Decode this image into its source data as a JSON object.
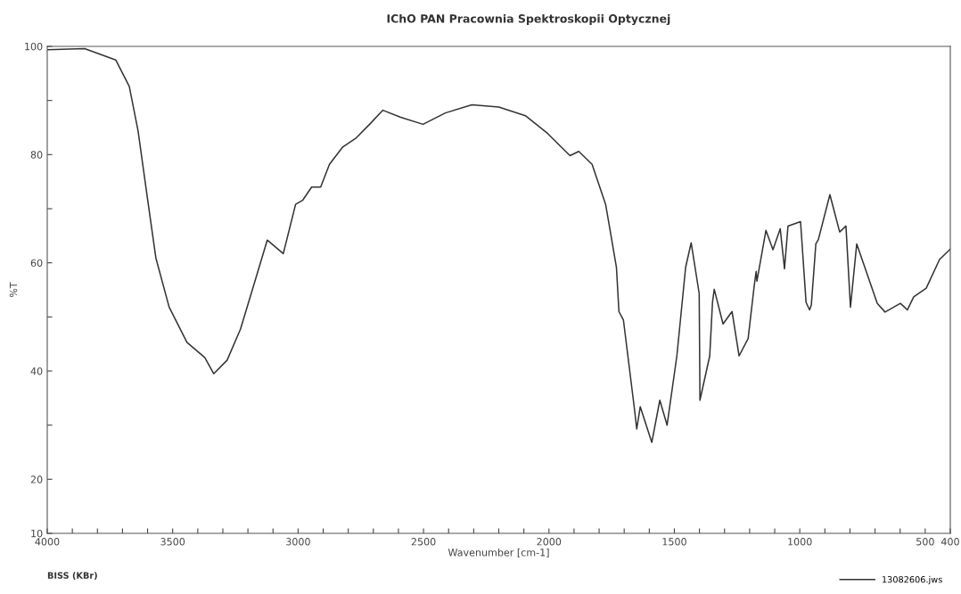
{
  "chart_data": {
    "type": "line",
    "title": "IChO PAN Pracownia Spektroskopii Optycznej",
    "xlabel": "Wavenumber [cm-1]",
    "ylabel": "%T",
    "annotations": [
      "BISS (KBr)"
    ],
    "xlim": [
      4000,
      400
    ],
    "ylim": [
      10,
      100
    ],
    "xticks": [
      4000,
      {
        "value": 3900,
        "label": null
      },
      {
        "value": 3800,
        "label": null
      },
      {
        "value": 3700,
        "label": null
      },
      {
        "value": 3600,
        "label": null
      },
      3500,
      {
        "value": 3400,
        "label": null
      },
      {
        "value": 3300,
        "label": null
      },
      {
        "value": 3200,
        "label": null
      },
      {
        "value": 3100,
        "label": null
      },
      3000,
      {
        "value": 2900,
        "label": null
      },
      {
        "value": 2800,
        "label": null
      },
      {
        "value": 2700,
        "label": null
      },
      {
        "value": 2600,
        "label": null
      },
      2500,
      {
        "value": 2400,
        "label": null
      },
      {
        "value": 2300,
        "label": null
      },
      {
        "value": 2200,
        "label": null
      },
      {
        "value": 2100,
        "label": null
      },
      2000,
      {
        "value": 1900,
        "label": null
      },
      {
        "value": 1800,
        "label": null
      },
      {
        "value": 1700,
        "label": null
      },
      {
        "value": 1600,
        "label": null
      },
      1500,
      {
        "value": 1400,
        "label": null
      },
      {
        "value": 1300,
        "label": null
      },
      {
        "value": 1200,
        "label": null
      },
      {
        "value": 1100,
        "label": null
      },
      1000,
      {
        "value": 900,
        "label": null
      },
      {
        "value": 800,
        "label": null
      },
      {
        "value": 700,
        "label": null
      },
      {
        "value": 600,
        "label": null
      },
      500,
      400
    ],
    "yticks": [
      10,
      20,
      {
        "value": 30,
        "label": null
      },
      40,
      {
        "value": 50,
        "label": null
      },
      60,
      {
        "value": 70,
        "label": null
      },
      80,
      {
        "value": 90,
        "label": null
      },
      100
    ],
    "grid": false,
    "legend": "bottom right",
    "marker": "none",
    "line_style": "solid",
    "series": [
      {
        "name": "13082606.jws",
        "color": "#333333",
        "x": [
          4000,
          3851,
          3727,
          3673,
          3638,
          3602,
          3567,
          3514,
          3443,
          3372,
          3336,
          3283,
          3230,
          3176,
          3123,
          3059,
          3010,
          2981,
          2946,
          2910,
          2875,
          2822,
          2768,
          2715,
          2662,
          2591,
          2502,
          2413,
          2307,
          2200,
          2094,
          2005,
          1916,
          1881,
          1828,
          1774,
          1731,
          1721,
          1703,
          1661,
          1650,
          1636,
          1590,
          1558,
          1529,
          1490,
          1455,
          1433,
          1401,
          1398,
          1359,
          1348,
          1341,
          1306,
          1270,
          1242,
          1206,
          1181,
          1174,
          1171,
          1135,
          1107,
          1078,
          1061,
          1047,
          997,
          975,
          961,
          954,
          936,
          926,
          880,
          841,
          816,
          798,
          773,
          691,
          660,
          599,
          571,
          546,
          496,
          443,
          401
        ],
        "values": [
          99.4,
          99.6,
          97.5,
          92.6,
          84.4,
          72.4,
          60.9,
          51.8,
          45.3,
          42.5,
          39.5,
          42,
          47.7,
          56,
          64.2,
          61.7,
          70.8,
          71.6,
          74,
          74,
          78.2,
          81.4,
          83.1,
          85.6,
          88.2,
          86.9,
          85.6,
          87.7,
          89.2,
          88.8,
          87.2,
          83.9,
          79.8,
          80.6,
          78.2,
          70.8,
          59.2,
          51,
          49.4,
          33.7,
          29.3,
          33.4,
          26.8,
          34.6,
          30,
          42.8,
          59.2,
          63.7,
          54.3,
          34.6,
          42.8,
          52.7,
          55.1,
          48.7,
          51,
          42.8,
          46,
          56,
          58.4,
          56.6,
          66,
          62.4,
          66.3,
          58.9,
          66.8,
          67.6,
          52.7,
          51.3,
          52.2,
          63.5,
          64.3,
          72.6,
          65.7,
          66.8,
          51.8,
          63.5,
          52.5,
          50.9,
          52.5,
          51.3,
          53.7,
          55.3,
          60.6,
          62.5
        ]
      }
    ]
  }
}
